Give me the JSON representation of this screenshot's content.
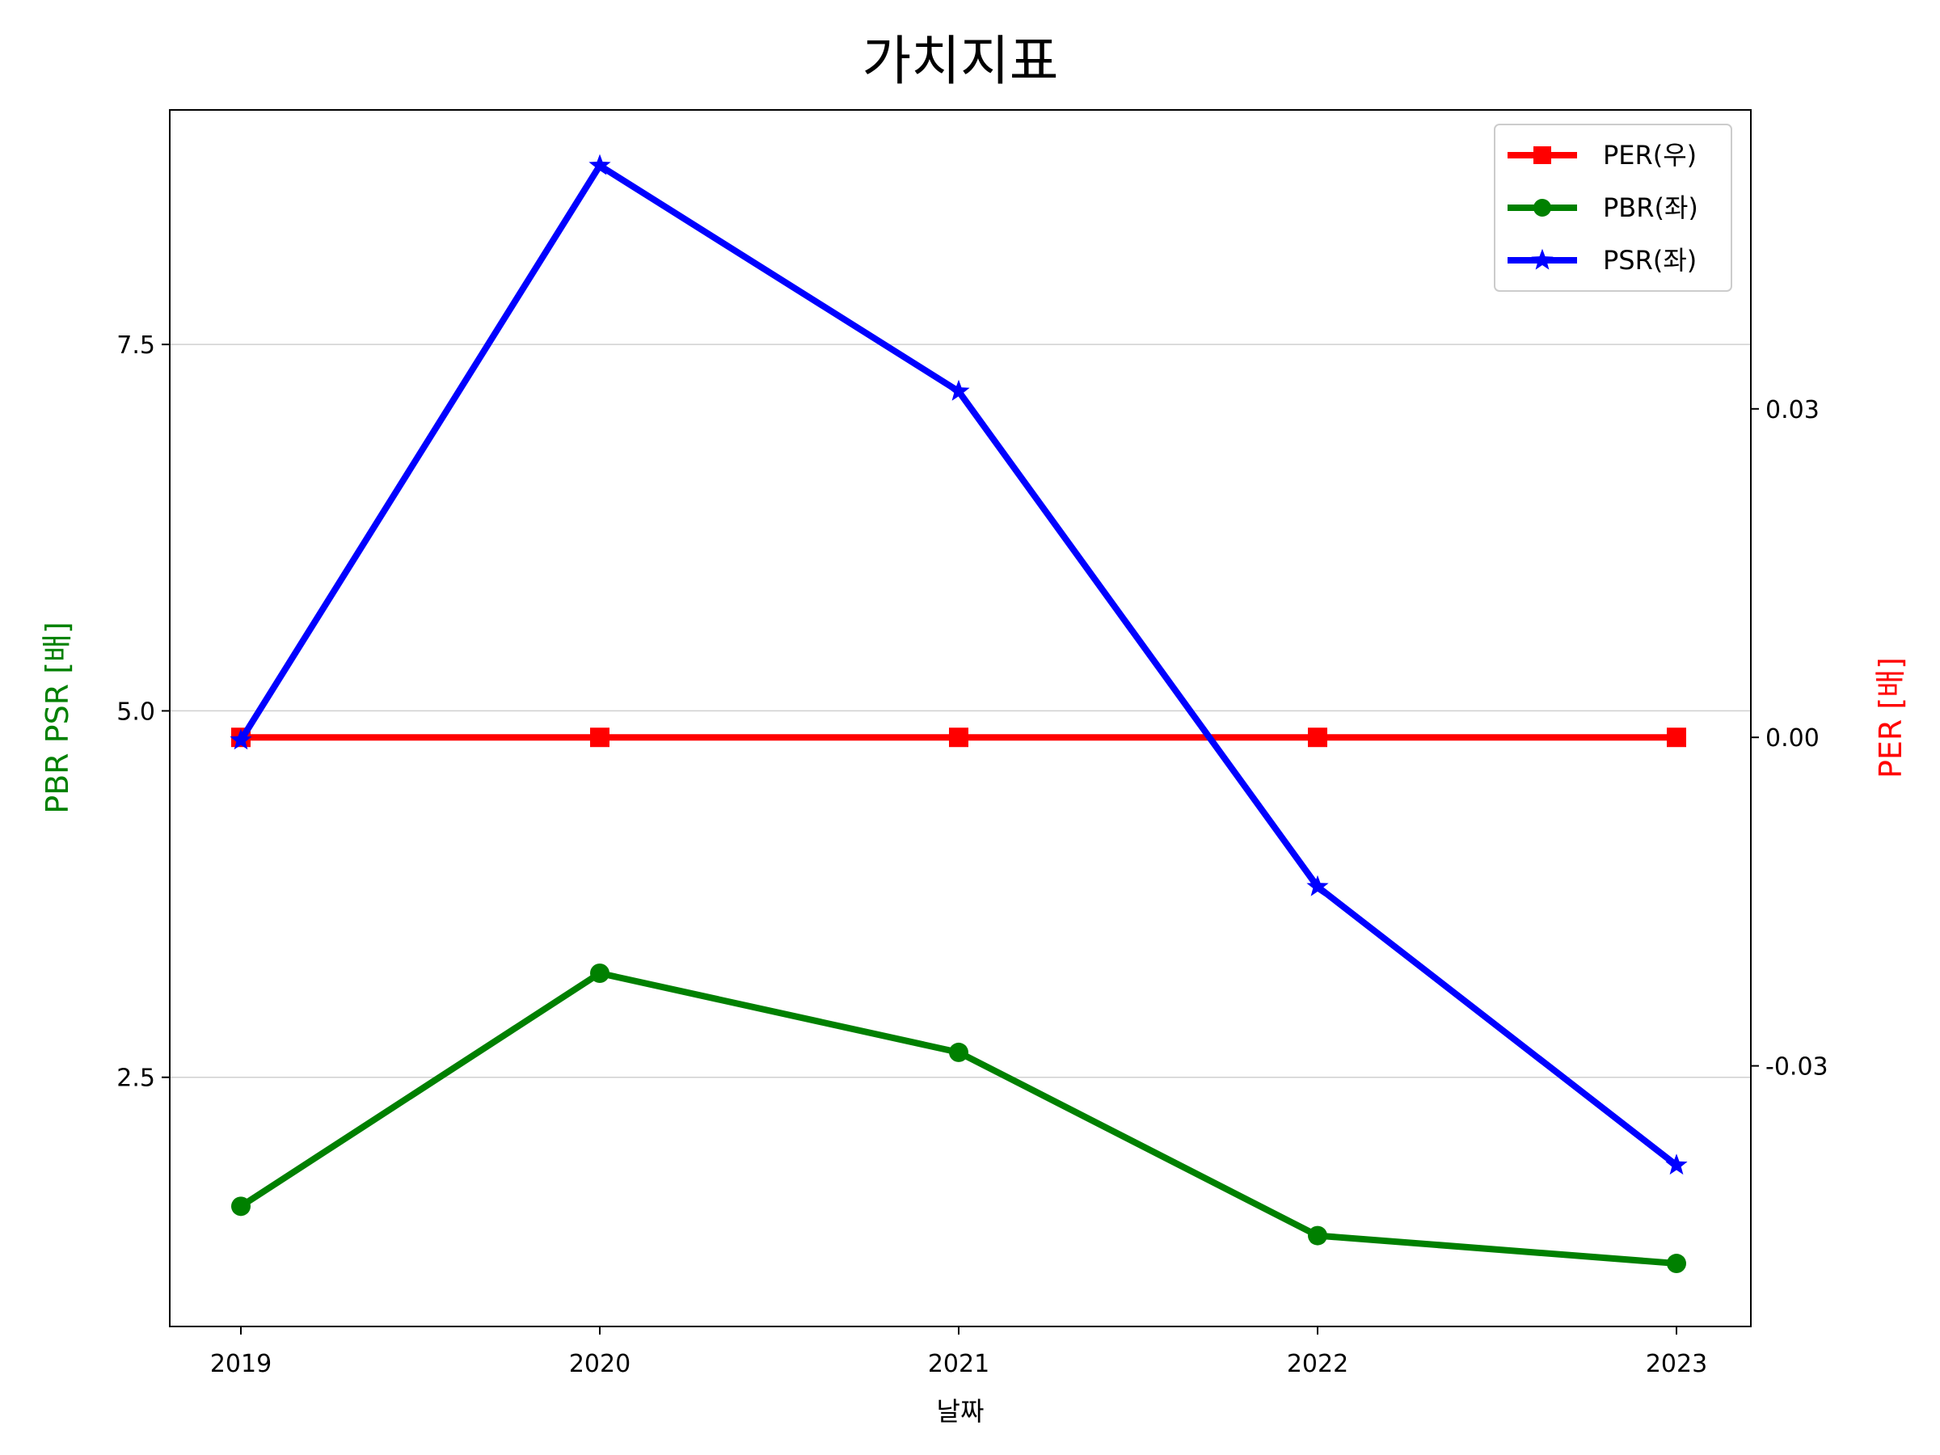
{
  "chart_data": {
    "type": "line",
    "title": "가치지표",
    "xlabel": "날짜",
    "ylabel_left": "PBR PSR [배]",
    "ylabel_right": "PER [배]",
    "categories": [
      "2019",
      "2020",
      "2021",
      "2022",
      "2023"
    ],
    "ylim_left": [
      0.8,
      9.1
    ],
    "ylim_right": [
      -0.0538,
      0.0573
    ],
    "yticks_left": [
      2.5,
      5.0,
      7.5
    ],
    "yticks_left_labels": [
      "2.5",
      "5.0",
      "7.5"
    ],
    "yticks_right": [
      -0.03,
      0.0,
      0.03
    ],
    "yticks_right_labels": [
      "-0.03",
      "0.00",
      "0.03"
    ],
    "grid": "horizontal, left axis",
    "legend_position": "top-right",
    "series": [
      {
        "name": "PER(우)",
        "axis": "right",
        "color": "#ff0000",
        "marker": "square",
        "values": [
          0,
          0,
          0,
          0,
          0
        ]
      },
      {
        "name": "PBR(좌)",
        "axis": "left",
        "color": "#008000",
        "marker": "circle",
        "values": [
          1.62,
          3.21,
          2.67,
          1.42,
          1.23
        ]
      },
      {
        "name": "PSR(좌)",
        "axis": "left",
        "color": "#0000ff",
        "marker": "star",
        "values": [
          4.8,
          8.72,
          7.18,
          3.8,
          1.9
        ]
      }
    ]
  }
}
